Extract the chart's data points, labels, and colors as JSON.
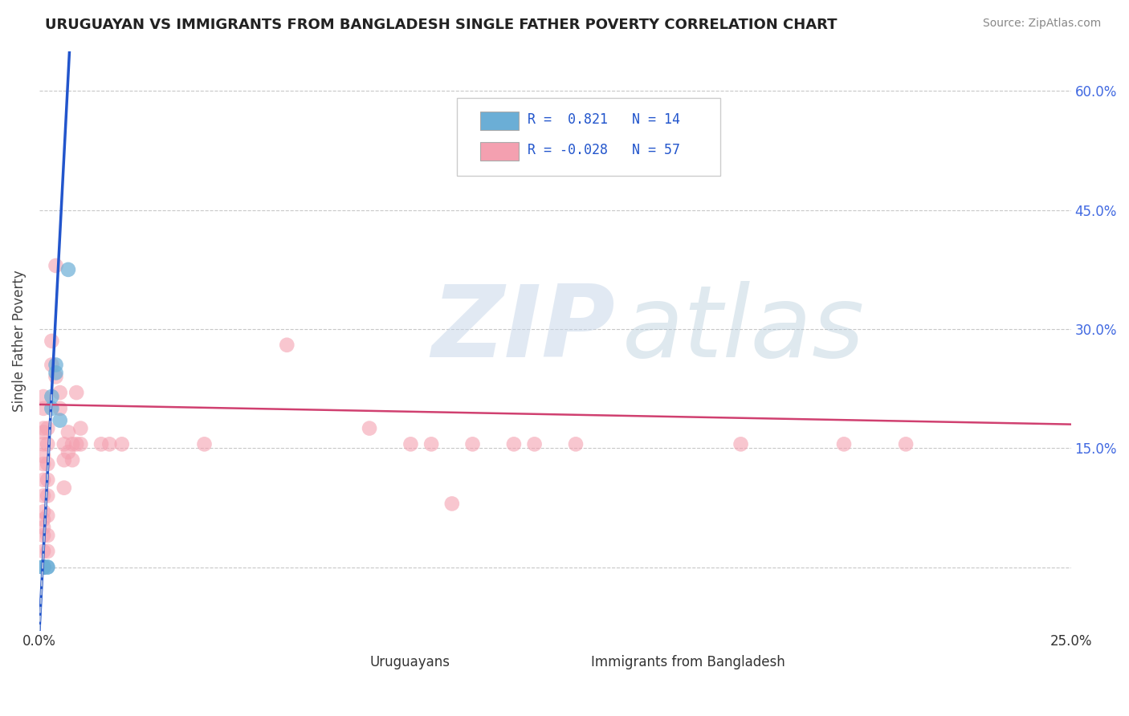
{
  "title": "URUGUAYAN VS IMMIGRANTS FROM BANGLADESH SINGLE FATHER POVERTY CORRELATION CHART",
  "source": "Source: ZipAtlas.com",
  "ylabel_label": "Single Father Poverty",
  "xlim": [
    0.0,
    0.25
  ],
  "ylim": [
    -0.08,
    0.65
  ],
  "x_tick_positions": [
    0.0,
    0.05,
    0.1,
    0.15,
    0.2,
    0.25
  ],
  "x_tick_labels": [
    "0.0%",
    "",
    "",
    "",
    "",
    "25.0%"
  ],
  "y_tick_positions": [
    0.0,
    0.15,
    0.3,
    0.45,
    0.6
  ],
  "y_tick_labels_right": [
    "",
    "15.0%",
    "30.0%",
    "45.0%",
    "60.0%"
  ],
  "uruguayan_scatter": [
    [
      0.001,
      0.0
    ],
    [
      0.001,
      0.0
    ],
    [
      0.001,
      0.0
    ],
    [
      0.001,
      0.0
    ],
    [
      0.001,
      0.0
    ],
    [
      0.001,
      0.0
    ],
    [
      0.002,
      0.0
    ],
    [
      0.002,
      0.0
    ],
    [
      0.003,
      0.2
    ],
    [
      0.003,
      0.215
    ],
    [
      0.004,
      0.245
    ],
    [
      0.004,
      0.255
    ],
    [
      0.005,
      0.185
    ],
    [
      0.007,
      0.375
    ]
  ],
  "bangladesh_scatter": [
    [
      0.001,
      0.2
    ],
    [
      0.001,
      0.215
    ],
    [
      0.001,
      0.17
    ],
    [
      0.001,
      0.175
    ],
    [
      0.001,
      0.155
    ],
    [
      0.001,
      0.14
    ],
    [
      0.001,
      0.13
    ],
    [
      0.001,
      0.11
    ],
    [
      0.001,
      0.09
    ],
    [
      0.001,
      0.07
    ],
    [
      0.001,
      0.06
    ],
    [
      0.001,
      0.05
    ],
    [
      0.001,
      0.04
    ],
    [
      0.001,
      0.02
    ],
    [
      0.001,
      0.0
    ],
    [
      0.001,
      0.0
    ],
    [
      0.002,
      0.175
    ],
    [
      0.002,
      0.155
    ],
    [
      0.002,
      0.13
    ],
    [
      0.002,
      0.11
    ],
    [
      0.002,
      0.09
    ],
    [
      0.002,
      0.065
    ],
    [
      0.002,
      0.04
    ],
    [
      0.002,
      0.02
    ],
    [
      0.003,
      0.285
    ],
    [
      0.003,
      0.255
    ],
    [
      0.004,
      0.38
    ],
    [
      0.004,
      0.24
    ],
    [
      0.005,
      0.22
    ],
    [
      0.005,
      0.2
    ],
    [
      0.006,
      0.155
    ],
    [
      0.006,
      0.135
    ],
    [
      0.006,
      0.1
    ],
    [
      0.007,
      0.17
    ],
    [
      0.007,
      0.145
    ],
    [
      0.008,
      0.155
    ],
    [
      0.008,
      0.135
    ],
    [
      0.009,
      0.22
    ],
    [
      0.009,
      0.155
    ],
    [
      0.01,
      0.175
    ],
    [
      0.01,
      0.155
    ],
    [
      0.015,
      0.155
    ],
    [
      0.017,
      0.155
    ],
    [
      0.02,
      0.155
    ],
    [
      0.04,
      0.155
    ],
    [
      0.06,
      0.28
    ],
    [
      0.08,
      0.175
    ],
    [
      0.09,
      0.155
    ],
    [
      0.095,
      0.155
    ],
    [
      0.1,
      0.08
    ],
    [
      0.105,
      0.155
    ],
    [
      0.115,
      0.155
    ],
    [
      0.12,
      0.155
    ],
    [
      0.13,
      0.155
    ],
    [
      0.17,
      0.155
    ],
    [
      0.195,
      0.155
    ],
    [
      0.21,
      0.155
    ]
  ],
  "uruguayan_color": "#6baed6",
  "bangladesh_color": "#f4a0b0",
  "trendline_uruguayan_color": "#2255cc",
  "trendline_bangladesh_color": "#d04070",
  "trendline_uruguayan_dashed_color": "#aabbdd",
  "background_color": "#ffffff",
  "grid_color": "#c8c8c8",
  "watermark_zip_color": "#c5d5e8",
  "watermark_atlas_color": "#b0c8d8"
}
